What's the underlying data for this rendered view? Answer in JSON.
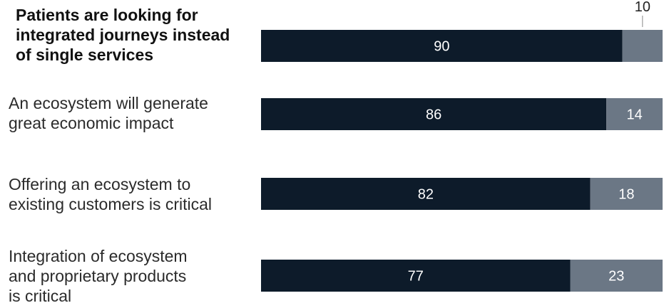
{
  "chart_data": {
    "type": "bar",
    "orientation": "horizontal",
    "stacked": true,
    "categories": [
      "Patients are looking for integrated journeys instead of single services",
      "An ecosystem will generate great economic impact",
      "Offering an ecosystem to existing customers is critical",
      "Integration of ecosystem and proprietary products is critical"
    ],
    "label_lines": [
      [
        "Patients are looking for",
        "integrated journeys instead",
        "of single services"
      ],
      [
        "An ecosystem will generate",
        "great economic impact"
      ],
      [
        "Offering an ecosystem to",
        "existing customers is critical"
      ],
      [
        "Integration of ecosystem",
        "and proprietary products",
        "is critical"
      ]
    ],
    "highlighted_category_index": 0,
    "series": [
      {
        "values": [
          90,
          86,
          82,
          77
        ],
        "color": "#0d1b2a"
      },
      {
        "values": [
          10,
          14,
          18,
          23
        ],
        "color": "#6b7785"
      }
    ],
    "xlim": [
      0,
      100
    ],
    "outside_label_index": 0
  }
}
